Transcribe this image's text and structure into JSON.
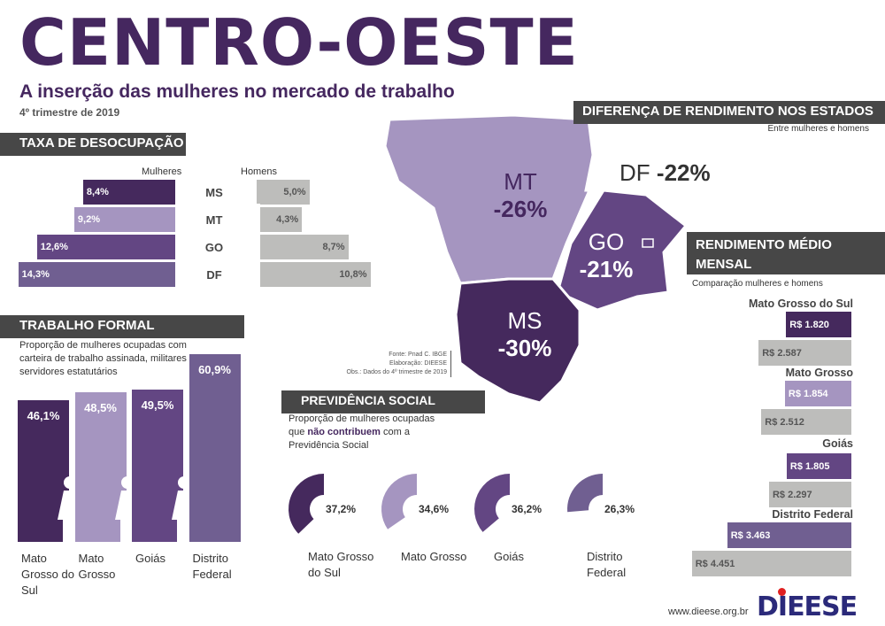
{
  "header": {
    "title": "CENTRO-OESTE",
    "subtitle": "A inserção das mulheres no mercado de trabalho",
    "period": "4º trimestre de 2019"
  },
  "colors": {
    "MS": "#45295d",
    "MT": "#a595c0",
    "GO": "#634683",
    "DF": "#705f91",
    "men": "#bdbdbb",
    "header": "#474747"
  },
  "chart_data": [
    {
      "type": "bar",
      "title": "TAXA DE DESOCUPAÇÃO",
      "legend": [
        "Mulheres",
        "Homens"
      ],
      "categories": [
        "MS",
        "MT",
        "GO",
        "DF"
      ],
      "series": [
        {
          "name": "Mulheres",
          "values": [
            8.4,
            9.2,
            12.6,
            14.3
          ],
          "labels": [
            "8,4%",
            "9,2%",
            "12,6%",
            "14,3%"
          ]
        },
        {
          "name": "Homens",
          "values": [
            5.0,
            4.3,
            8.7,
            10.8
          ],
          "labels": [
            "5,0%",
            "4,3%",
            "8,7%",
            "10,8%"
          ]
        }
      ]
    },
    {
      "type": "bar",
      "title": "TRABALHO FORMAL",
      "subtitle": "Proporção de mulheres ocupadas com carteira de trabalho assinada, militares e servidores estatutários",
      "categories": [
        "Mato Grosso do Sul",
        "Mato Grosso",
        "Goiás",
        "Distrito Federal"
      ],
      "values": [
        46.1,
        48.5,
        49.5,
        60.9
      ],
      "labels": [
        "46,1%",
        "48,5%",
        "49,5%",
        "60,9%"
      ]
    },
    {
      "type": "pie",
      "title": "PREVIDÊNCIA SOCIAL",
      "subtitle_parts": [
        "Proporção de mulheres ocupadas que ",
        "não contribuem",
        " com a Previdência Social"
      ],
      "categories": [
        "Mato Grosso do Sul",
        "Mato Grosso",
        "Goiás",
        "Distrito Federal"
      ],
      "values": [
        37.2,
        34.6,
        36.2,
        26.3
      ],
      "labels": [
        "37,2%",
        "34,6%",
        "36,2%",
        "26,3%"
      ]
    },
    {
      "type": "bar",
      "title": "RENDIMENTO MÉDIO MENSAL",
      "subtitle": "Comparação mulheres e homens",
      "categories": [
        "Mato Grosso do Sul",
        "Mato Grosso",
        "Goiás",
        "Distrito Federal"
      ],
      "series": [
        {
          "name": "Mulheres",
          "values": [
            1820,
            1854,
            1805,
            3463
          ],
          "labels": [
            "R$ 1.820",
            "R$ 1.854",
            "R$ 1.805",
            "R$ 3.463"
          ]
        },
        {
          "name": "Homens",
          "values": [
            2587,
            2512,
            2297,
            4451
          ],
          "labels": [
            "R$ 2.587",
            "R$ 2.512",
            "R$ 2.297",
            "R$ 4.451"
          ]
        }
      ]
    },
    {
      "type": "map",
      "title": "DIFERENÇA DE RENDIMENTO NOS ESTADOS",
      "subtitle": "Entre mulheres e homens",
      "regions": [
        {
          "code": "MT",
          "value": "-26%"
        },
        {
          "code": "GO",
          "value": "-21%"
        },
        {
          "code": "MS",
          "value": "-30%"
        },
        {
          "code": "DF",
          "value": "-22%"
        }
      ]
    }
  ],
  "source": {
    "fonte": "Fonte: Pnad C. IBGE",
    "elab": "Elaboração: DIEESE",
    "obs": "Obs.: Dados do 4º trimestre de 2019"
  },
  "footer": {
    "url": "www.dieese.org.br",
    "logo": "DIEESE"
  }
}
